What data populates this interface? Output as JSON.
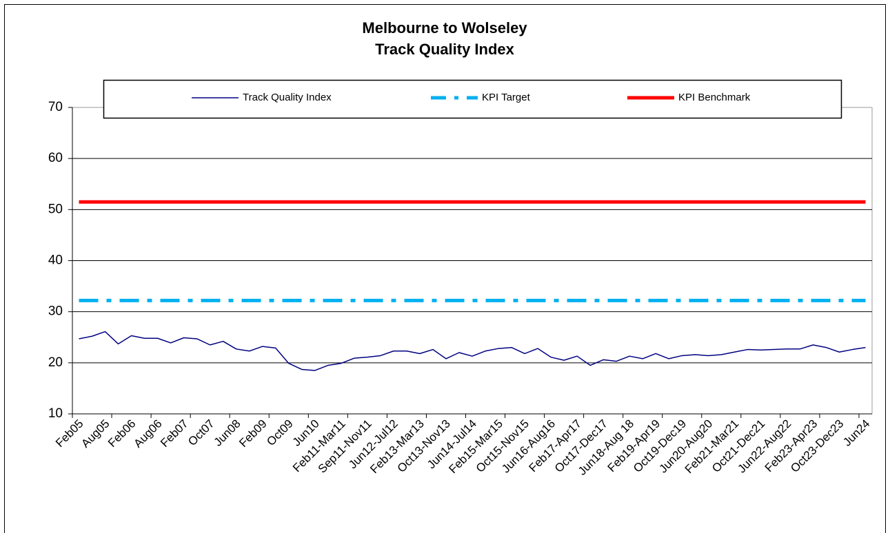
{
  "chart_data": {
    "type": "line",
    "title": "Melbourne to Wolseley",
    "subtitle": "Track Quality Index",
    "categories": [
      "Feb05",
      null,
      "Aug05",
      null,
      "Feb06",
      null,
      "Aug06",
      null,
      "Feb07",
      null,
      "Oct07",
      null,
      "Jun08",
      null,
      "Feb09",
      null,
      "Oct09",
      null,
      "Jun10",
      null,
      "Feb11-Mar11",
      null,
      "Sep11-Nov11",
      null,
      "Jun12-Jul12",
      null,
      "Feb13-Mar13",
      null,
      "Oct13-Nov13",
      null,
      "Jun14-Jul14",
      null,
      "Feb15-Mar15",
      null,
      "Oct15-Nov15",
      null,
      "Jun16-Aug16",
      null,
      "Feb17-Apr17",
      null,
      "Oct17-Dec17",
      null,
      "Jun18-Aug 18",
      null,
      "Feb19-Apr19",
      null,
      "Oct19-Dec19",
      null,
      "Jun20-Aug20",
      null,
      "Feb21-Mar21",
      null,
      "Oct21-Dec21",
      null,
      "Jun22-Aug22",
      null,
      "Feb23-Apr23",
      null,
      "Oct23-Dec23",
      null,
      "Jun24"
    ],
    "series": [
      {
        "name": "Track Quality Index",
        "color": "#000080",
        "style": "solid",
        "width": 1.5,
        "values": [
          24.7,
          25.2,
          26.1,
          23.7,
          25.3,
          24.8,
          24.8,
          23.9,
          24.9,
          24.7,
          23.5,
          24.2,
          22.7,
          22.3,
          23.2,
          22.9,
          19.9,
          18.7,
          18.5,
          19.5,
          19.9,
          20.9,
          21.1,
          21.4,
          22.3,
          22.3,
          21.8,
          22.6,
          20.8,
          22.0,
          21.3,
          22.3,
          22.8,
          23.0,
          21.8,
          22.8,
          21.1,
          20.5,
          21.3,
          19.5,
          20.6,
          20.3,
          21.3,
          20.8,
          21.8,
          20.8,
          21.4,
          21.6,
          21.4,
          21.6,
          22.1,
          22.6,
          22.5,
          22.6,
          22.7,
          22.7,
          23.5,
          23.0,
          22.1,
          22.6,
          23.0
        ]
      },
      {
        "name": "KPI Target",
        "color": "#00b0f0",
        "style": "dash-dot",
        "width": 5,
        "values": [
          32.2,
          32.2,
          32.2,
          32.2,
          32.2,
          32.2,
          32.2,
          32.2,
          32.2,
          32.2,
          32.2,
          32.2,
          32.2,
          32.2,
          32.2,
          32.2,
          32.2,
          32.2,
          32.2,
          32.2,
          32.2,
          32.2,
          32.2,
          32.2,
          32.2,
          32.2,
          32.2,
          32.2,
          32.2,
          32.2,
          32.2,
          32.2,
          32.2,
          32.2,
          32.2,
          32.2,
          32.2,
          32.2,
          32.2,
          32.2,
          32.2,
          32.2,
          32.2,
          32.2,
          32.2,
          32.2,
          32.2,
          32.2,
          32.2,
          32.2,
          32.2,
          32.2,
          32.2,
          32.2,
          32.2,
          32.2,
          32.2,
          32.2,
          32.2,
          32.2,
          32.2
        ]
      },
      {
        "name": "KPI Benchmark",
        "color": "#ff0000",
        "style": "solid",
        "width": 5,
        "values": [
          51.5,
          51.5,
          51.5,
          51.5,
          51.5,
          51.5,
          51.5,
          51.5,
          51.5,
          51.5,
          51.5,
          51.5,
          51.5,
          51.5,
          51.5,
          51.5,
          51.5,
          51.5,
          51.5,
          51.5,
          51.5,
          51.5,
          51.5,
          51.5,
          51.5,
          51.5,
          51.5,
          51.5,
          51.5,
          51.5,
          51.5,
          51.5,
          51.5,
          51.5,
          51.5,
          51.5,
          51.5,
          51.5,
          51.5,
          51.5,
          51.5,
          51.5,
          51.5,
          51.5,
          51.5,
          51.5,
          51.5,
          51.5,
          51.5,
          51.5,
          51.5,
          51.5,
          51.5,
          51.5,
          51.5,
          51.5,
          51.5,
          51.5,
          51.5,
          51.5,
          51.5
        ]
      }
    ],
    "ylim": [
      10,
      70
    ],
    "yticks": [
      10,
      20,
      30,
      40,
      50,
      60,
      70
    ],
    "grid": true,
    "legend": "top"
  }
}
